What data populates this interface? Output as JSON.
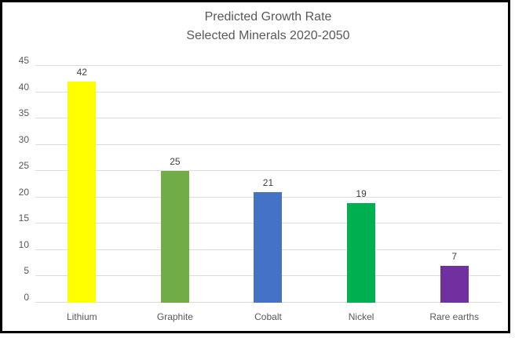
{
  "chart_data": {
    "type": "bar",
    "title_line1": "Predicted Growth Rate",
    "title_line2": "Selected Minerals 2020-2050",
    "categories": [
      "Lithium",
      "Graphite",
      "Cobalt",
      "Nickel",
      "Rare earths"
    ],
    "values": [
      42,
      25,
      21,
      19,
      7
    ],
    "bar_colors": [
      "#FFFF00",
      "#70AD47",
      "#4472C4",
      "#00B050",
      "#7030A0"
    ],
    "data_labels": [
      "42",
      "25",
      "21",
      "19",
      "7"
    ],
    "ylim": [
      0,
      45
    ],
    "yticks": [
      0,
      5,
      10,
      15,
      20,
      25,
      30,
      35,
      40,
      45
    ],
    "grid": true,
    "legend_position": "none",
    "xlabel": "",
    "ylabel": ""
  },
  "colors": {
    "background": "#FFFFFF",
    "border": "#000000",
    "gridline": "#DCDCDC",
    "title_text": "#595959",
    "axis_text": "#595959",
    "value_label_text": "#404040"
  }
}
